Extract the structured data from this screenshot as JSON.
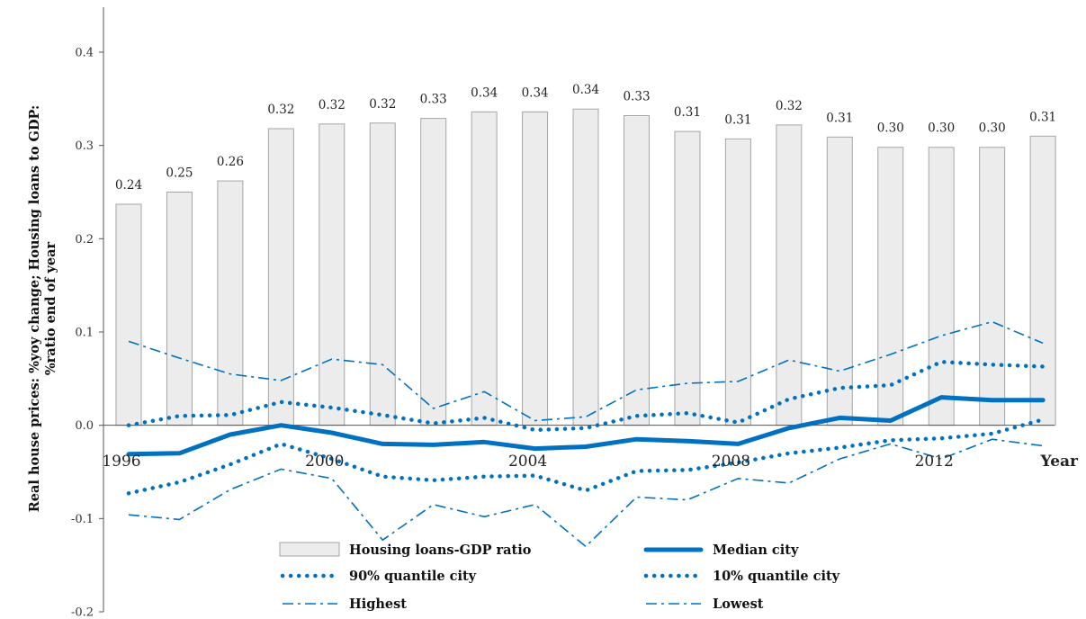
{
  "chart_data": {
    "type": "bar",
    "ylabel_line1": "Real house prices: %yoy change; Housing loans to GDP:",
    "ylabel_line2": "%ratio end of year",
    "xlabel": "Year",
    "ylim": [
      -0.2,
      0.4
    ],
    "yticks": [
      "-0.2",
      "-0.1",
      "0.0",
      "0.1",
      "0.2",
      "0.3",
      "0.4"
    ],
    "ytick_values": [
      -0.2,
      -0.1,
      0.0,
      0.1,
      0.2,
      0.3,
      0.4
    ],
    "x": [
      1996,
      1997,
      1998,
      1999,
      2000,
      2001,
      2002,
      2003,
      2004,
      2005,
      2006,
      2007,
      2008,
      2009,
      2010,
      2011,
      2012,
      2013,
      2014
    ],
    "xtick_labels": [
      {
        "year": 1996,
        "label": "1996"
      },
      {
        "year": 2000,
        "label": "2000"
      },
      {
        "year": 2004,
        "label": "2004"
      },
      {
        "year": 2008,
        "label": "2008"
      },
      {
        "year": 2012,
        "label": "2012"
      }
    ],
    "grid": false,
    "legend_placement": "bottom",
    "series": [
      {
        "name": "Housing loans-GDP ratio",
        "kind": "bar",
        "color": "#ececec",
        "edge_color": "#a6a6a6",
        "values": [
          0.237,
          0.25,
          0.262,
          0.318,
          0.323,
          0.324,
          0.329,
          0.336,
          0.336,
          0.339,
          0.332,
          0.315,
          0.307,
          0.322,
          0.309,
          0.298,
          0.298,
          0.298,
          0.31
        ],
        "data_labels": [
          "0.24",
          "0.25",
          "0.26",
          "0.32",
          "0.32",
          "0.32",
          "0.33",
          "0.34",
          "0.34",
          "0.34",
          "0.33",
          "0.31",
          "0.31",
          "0.32",
          "0.31",
          "0.30",
          "0.30",
          "0.30",
          "0.31"
        ]
      },
      {
        "name": "Median city",
        "kind": "line",
        "style": "solid",
        "color": "#0070c0",
        "values": [
          -0.031,
          -0.03,
          -0.01,
          0.0,
          -0.008,
          -0.02,
          -0.021,
          -0.018,
          -0.025,
          -0.023,
          -0.015,
          -0.017,
          -0.02,
          -0.003,
          0.008,
          0.005,
          0.03,
          0.027,
          0.027
        ]
      },
      {
        "name": "90% quantile city",
        "kind": "line",
        "style": "dotted",
        "color": "#0070c0",
        "values": [
          0.0,
          0.01,
          0.011,
          0.025,
          0.019,
          0.011,
          0.002,
          0.008,
          -0.005,
          -0.003,
          0.01,
          0.013,
          0.003,
          0.028,
          0.04,
          0.043,
          0.068,
          0.065,
          0.063
        ]
      },
      {
        "name": "10% quantile city",
        "kind": "line",
        "style": "dotted",
        "color": "#0070c0",
        "values": [
          -0.073,
          -0.061,
          -0.042,
          -0.02,
          -0.036,
          -0.055,
          -0.059,
          -0.055,
          -0.054,
          -0.07,
          -0.049,
          -0.048,
          -0.04,
          -0.03,
          -0.024,
          -0.016,
          -0.014,
          -0.009,
          0.006
        ]
      },
      {
        "name": "Highest",
        "kind": "line",
        "style": "dashdot",
        "color": "#0070c0",
        "values": [
          0.09,
          0.072,
          0.055,
          0.048,
          0.071,
          0.065,
          0.018,
          0.036,
          0.005,
          0.009,
          0.038,
          0.045,
          0.047,
          0.07,
          0.058,
          0.076,
          0.096,
          0.111,
          0.088
        ]
      },
      {
        "name": "Lowest",
        "kind": "line",
        "style": "dashdot",
        "color": "#0070c0",
        "values": [
          -0.096,
          -0.101,
          -0.069,
          -0.047,
          -0.057,
          -0.123,
          -0.085,
          -0.098,
          -0.085,
          -0.13,
          -0.077,
          -0.08,
          -0.057,
          -0.062,
          -0.036,
          -0.02,
          -0.036,
          -0.015,
          -0.022
        ]
      }
    ]
  }
}
